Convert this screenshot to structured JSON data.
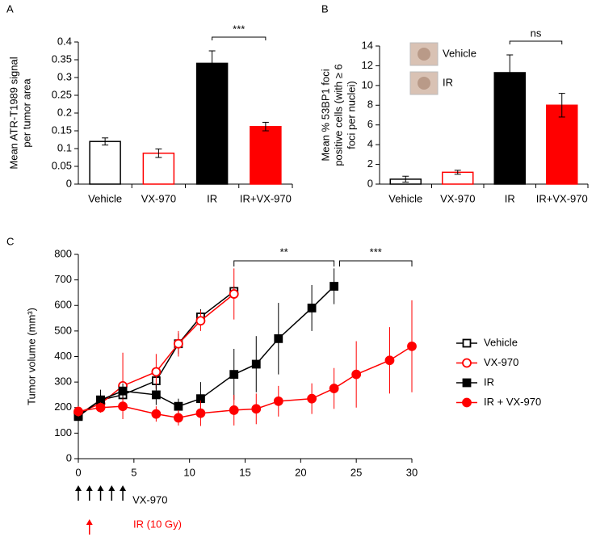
{
  "chart_data": [
    {
      "type": "bar",
      "panel": "A",
      "ylabel": [
        "Mean ATR-T1989 signal",
        "per tumor area"
      ],
      "categories": [
        "Vehicle",
        "VX-970",
        "IR",
        "IR+VX-970"
      ],
      "values": [
        0.12,
        0.087,
        0.34,
        0.162
      ],
      "errors": [
        0.01,
        0.012,
        0.035,
        0.012
      ],
      "fills": [
        "#ffffff",
        "#ffffff",
        "#000000",
        "#ff0000"
      ],
      "strokes": [
        "#000000",
        "#ff0000",
        "#000000",
        "#ff0000"
      ],
      "significance": "***",
      "ylim": [
        0,
        0.4
      ],
      "yticks": [
        0,
        0.05,
        0.1,
        0.15,
        0.2,
        0.25,
        0.3,
        0.35,
        0.4
      ]
    },
    {
      "type": "bar",
      "panel": "B",
      "ylabel": [
        "Mean % 53BP1 foci",
        "positive cells (with ≥ 6",
        "foci per nuclei)"
      ],
      "inset_labels": [
        "Vehicle",
        "IR"
      ],
      "categories": [
        "Vehicle",
        "VX-970",
        "IR",
        "IR+VX-970"
      ],
      "values": [
        0.5,
        1.2,
        11.3,
        8.0
      ],
      "errors": [
        0.3,
        0.2,
        1.8,
        1.2
      ],
      "fills": [
        "#ffffff",
        "#ffffff",
        "#000000",
        "#ff0000"
      ],
      "strokes": [
        "#000000",
        "#ff0000",
        "#000000",
        "#ff0000"
      ],
      "significance": "ns",
      "ylim": [
        0,
        14
      ],
      "yticks": [
        0,
        2,
        4,
        6,
        8,
        10,
        12,
        14
      ]
    },
    {
      "type": "line",
      "panel": "C",
      "ylabel": [
        "Tumor volume (mm³)"
      ],
      "xlim": [
        0,
        30
      ],
      "xticks": [
        0,
        5,
        10,
        15,
        20,
        25,
        30
      ],
      "ylim": [
        0,
        800
      ],
      "yticks": [
        0,
        100,
        200,
        300,
        400,
        500,
        600,
        700,
        800
      ],
      "series": [
        {
          "name": "Vehicle",
          "color": "#000000",
          "marker": "square",
          "filled": false,
          "x": [
            0,
            2,
            4,
            7,
            9,
            11,
            14
          ],
          "values": [
            170,
            230,
            250,
            305,
            450,
            555,
            655
          ],
          "errors": [
            15,
            20,
            20,
            30,
            40,
            30,
            20
          ]
        },
        {
          "name": "VX-970",
          "color": "#ff0000",
          "marker": "circle",
          "filled": false,
          "x": [
            0,
            2,
            4,
            7,
            9,
            11,
            14
          ],
          "values": [
            180,
            215,
            285,
            340,
            450,
            540,
            645
          ],
          "errors": [
            20,
            30,
            130,
            70,
            50,
            40,
            100
          ]
        },
        {
          "name": "IR",
          "color": "#000000",
          "marker": "square",
          "filled": true,
          "x": [
            0,
            2,
            4,
            7,
            9,
            11,
            14,
            16,
            18,
            21,
            23
          ],
          "values": [
            165,
            230,
            265,
            250,
            205,
            235,
            330,
            370,
            470,
            590,
            675
          ],
          "errors": [
            15,
            40,
            30,
            40,
            30,
            65,
            100,
            110,
            140,
            90,
            70
          ]
        },
        {
          "name": "IR + VX-970",
          "color": "#ff0000",
          "marker": "circle",
          "filled": true,
          "x": [
            0,
            2,
            4,
            7,
            9,
            11,
            14,
            16,
            18,
            21,
            23,
            25,
            28,
            30
          ],
          "values": [
            185,
            200,
            205,
            175,
            160,
            178,
            190,
            195,
            225,
            235,
            275,
            330,
            385,
            440
          ],
          "errors": [
            20,
            20,
            15,
            30,
            30,
            50,
            60,
            60,
            60,
            60,
            80,
            130,
            130,
            180
          ]
        }
      ],
      "brackets": [
        {
          "text": "**",
          "x": [
            14,
            23
          ]
        },
        {
          "text": "***",
          "x": [
            23.5,
            30
          ]
        }
      ],
      "dosing": [
        {
          "text": "VX-970",
          "color": "#000000",
          "x": [
            0,
            1,
            2,
            3,
            4
          ]
        },
        {
          "text": "IR (10 Gy)",
          "color": "#ff0000",
          "x": [
            1
          ]
        }
      ]
    }
  ]
}
